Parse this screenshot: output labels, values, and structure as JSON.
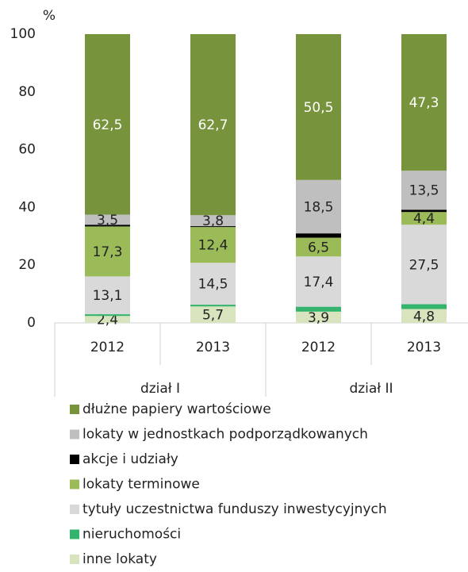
{
  "chart_data": {
    "type": "bar",
    "stacked": true,
    "y_label": "%",
    "categories": [
      "2012",
      "2013",
      "2012",
      "2013"
    ],
    "groups": [
      {
        "name": "dział I",
        "size": 2
      },
      {
        "name": "dział II",
        "size": 2
      }
    ],
    "ylim": [
      0,
      100
    ],
    "yticks": [
      0,
      20,
      40,
      60,
      80,
      100
    ],
    "grid": false,
    "series": [
      {
        "name": "inne lokaty",
        "color": "#d7e4bd",
        "values": [
          2.4,
          5.7,
          3.9,
          4.8
        ],
        "value_labels": [
          "2,4",
          "5,7",
          "3,9",
          "4,8"
        ]
      },
      {
        "name": "nieruchomości",
        "color": "#33b36b",
        "values": [
          0.6,
          0.6,
          1.7,
          1.7
        ],
        "value_labels": [
          null,
          null,
          null,
          null
        ]
      },
      {
        "name": "tytuły uczestnictwa funduszy inwestycyjnych",
        "color": "#d9d9d9",
        "values": [
          13.1,
          14.5,
          17.4,
          27.5
        ],
        "value_labels": [
          "13,1",
          "14,5",
          "17,4",
          "27,5"
        ]
      },
      {
        "name": "lokaty terminowe",
        "color": "#9bbb59",
        "values": [
          17.3,
          12.4,
          6.5,
          4.4
        ],
        "value_labels": [
          "17,3",
          "12,4",
          "6,5",
          "4,4"
        ]
      },
      {
        "name": "akcje i udziały",
        "color": "#000000",
        "values": [
          0.6,
          0.3,
          1.5,
          0.8
        ],
        "value_labels": [
          null,
          null,
          null,
          null
        ]
      },
      {
        "name": "lokaty w jednostkach podporządkowanych",
        "color": "#bfbfbf",
        "values": [
          3.5,
          3.8,
          18.5,
          13.5
        ],
        "value_labels": [
          "3,5",
          "3,8",
          "18,5",
          "13,5"
        ]
      },
      {
        "name": "dłużne papiery wartościowe",
        "color": "#77933c",
        "values": [
          62.5,
          62.7,
          50.5,
          47.3
        ],
        "value_labels": [
          "62,5",
          "62,7",
          "50,5",
          "47,3"
        ]
      }
    ]
  }
}
